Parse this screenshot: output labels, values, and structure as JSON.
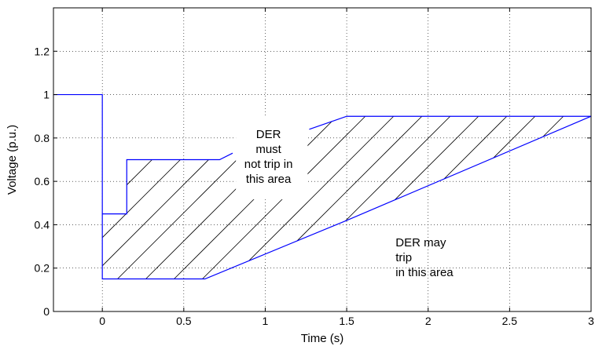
{
  "chart_data": {
    "type": "line",
    "title": "",
    "xlabel": "Time (s)",
    "ylabel": "Voltage (p.u.)",
    "xlim": [
      -0.3,
      3
    ],
    "ylim": [
      0,
      1.4
    ],
    "xticks": [
      0,
      0.5,
      1,
      1.5,
      2,
      2.5,
      3
    ],
    "xtick_labels": [
      "0",
      "0.5",
      "1",
      "1.5",
      "2",
      "2.5",
      "3"
    ],
    "yticks": [
      0,
      0.2,
      0.4,
      0.6,
      0.8,
      1,
      1.2
    ],
    "ytick_labels": [
      "0",
      "0.2",
      "0.4",
      "0.6",
      "0.8",
      "1",
      "1.2"
    ],
    "grid": true,
    "line_color": "#0000ff",
    "series": [
      {
        "role": "voltage-profile",
        "x": [
          -0.3,
          0,
          0,
          0.15,
          0.15,
          0.72,
          0.8
        ],
        "y": [
          1,
          1,
          0.45,
          0.45,
          0.7,
          0.7,
          0.73
        ]
      },
      {
        "role": "must-not-trip-upper-boundary",
        "x": [
          1.27,
          1.5,
          3
        ],
        "y": [
          0.84,
          0.9,
          0.9
        ]
      },
      {
        "role": "must-not-trip-lower-boundary",
        "x": [
          0,
          0,
          0.63,
          1.5,
          3
        ],
        "y": [
          0.45,
          0.15,
          0.15,
          0.42,
          0.9
        ]
      }
    ],
    "hatched_region": {
      "polygon_x": [
        0,
        0.15,
        0.15,
        0.72,
        1.5,
        3,
        1.5,
        0.63,
        0
      ],
      "polygon_y": [
        0.45,
        0.45,
        0.7,
        0.7,
        0.9,
        0.9,
        0.42,
        0.15,
        0.15
      ],
      "label_gap_x": [
        0.82,
        1.26
      ],
      "label_gap_y_max": 0.9
    },
    "annotations": [
      {
        "lines": [
          "DER",
          "must",
          "not trip in",
          "this area"
        ],
        "x": 1.02,
        "y": 0.8,
        "align": "middle"
      },
      {
        "lines": [
          "DER may",
          "trip",
          "in this area"
        ],
        "x": 1.8,
        "y": 0.3,
        "align": "start"
      }
    ]
  }
}
